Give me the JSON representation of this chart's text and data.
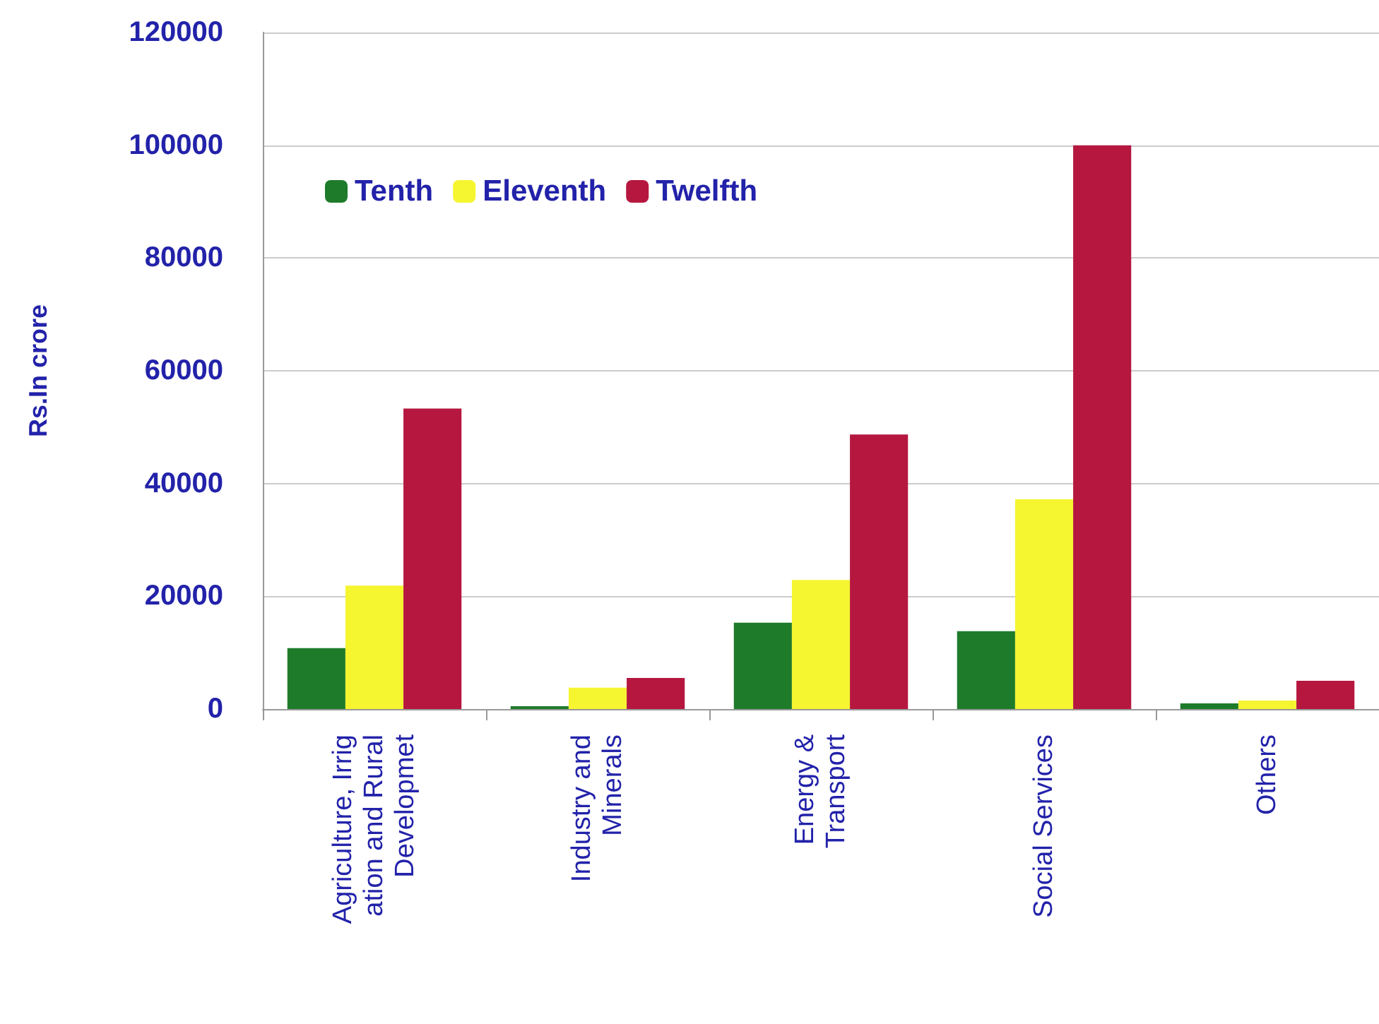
{
  "chart_data": {
    "type": "bar",
    "ylabel": "Rs.In crore",
    "categories": [
      "Agriculture, Irrig\nation and Rural\nDevelopmet",
      "Industry and\nMinerals",
      "Energy &\nTransport",
      "Social Services",
      "Others"
    ],
    "series": [
      {
        "name": "Tenth",
        "color": "#1e7b2a",
        "values": [
          10800,
          500,
          15300,
          13800,
          1000
        ]
      },
      {
        "name": "Eleventh",
        "color": "#f5f530",
        "values": [
          21900,
          3800,
          22900,
          37200,
          1500
        ]
      },
      {
        "name": "Twelfth",
        "color": "#b5173f",
        "values": [
          53300,
          5500,
          48700,
          100000,
          5000
        ]
      }
    ],
    "ylim": [
      0,
      120000
    ],
    "yticks": [
      0,
      20000,
      40000,
      60000,
      80000,
      100000,
      120000
    ],
    "grid": "y",
    "legend": "top left"
  }
}
